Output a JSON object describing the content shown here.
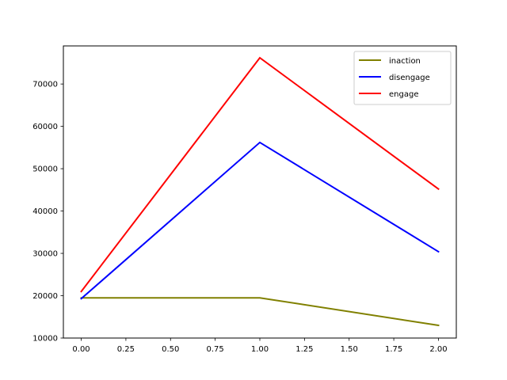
{
  "chart_data": {
    "type": "line",
    "title": "",
    "xlabel": "",
    "ylabel": "",
    "x": [
      0,
      1,
      2
    ],
    "xlim": [
      -0.1,
      2.1
    ],
    "ylim": [
      10000,
      79000
    ],
    "xticks": [
      0,
      0.25,
      0.5,
      0.75,
      1,
      1.25,
      1.5,
      1.75,
      2
    ],
    "xtick_labels": [
      "0.00",
      "0.25",
      "0.50",
      "0.75",
      "1.00",
      "1.25",
      "1.50",
      "1.75",
      "2.00"
    ],
    "yticks": [
      10000,
      20000,
      30000,
      40000,
      50000,
      60000,
      70000
    ],
    "ytick_labels": [
      "10000",
      "20000",
      "30000",
      "40000",
      "50000",
      "60000",
      "70000"
    ],
    "grid": false,
    "legend_position": "top-right",
    "series": [
      {
        "name": "inaction",
        "color": "#808000",
        "values": [
          19500,
          19500,
          13000
        ]
      },
      {
        "name": "disengage",
        "color": "#0000ff",
        "values": [
          19300,
          56200,
          30400
        ]
      },
      {
        "name": "engage",
        "color": "#ff0000",
        "values": [
          21000,
          76200,
          45200
        ]
      }
    ]
  }
}
